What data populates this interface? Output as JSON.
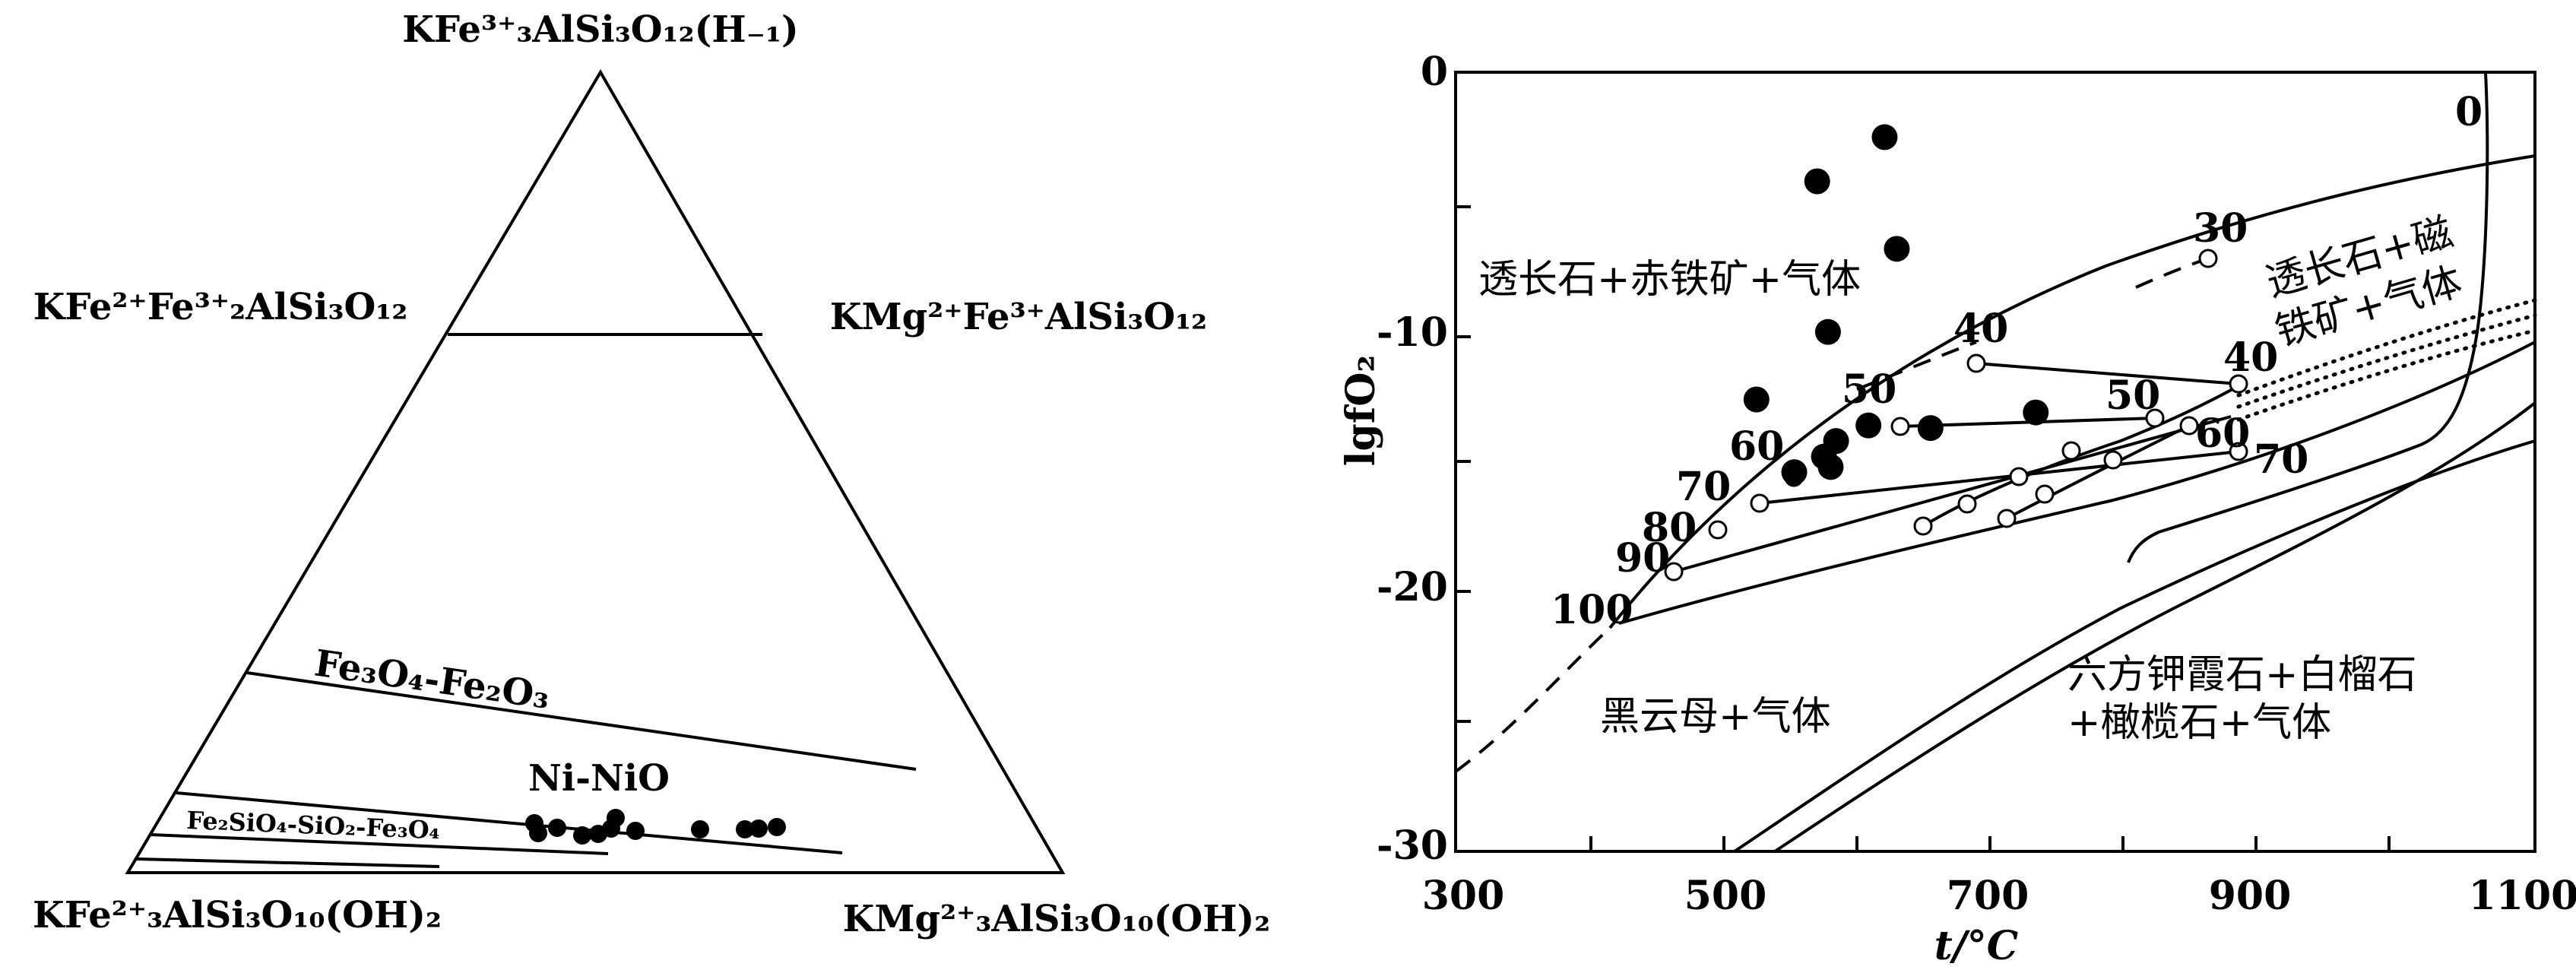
{
  "ternary": {
    "apex_top": "KFe³⁺₃AlSi₃O₁₂(H₋₁)",
    "left_side": "KFe²⁺Fe³⁺₂AlSi₃O₁₂",
    "right_side": "KMg²⁺Fe³⁺AlSi₃O₁₂",
    "bottom_left": "KFe²⁺₃AlSi₃O₁₀(OH)₂",
    "bottom_right": "KMg²⁺₃AlSi₃O₁₀(OH)₂",
    "buffer_mh": "Fe₃O₄-Fe₂O₃",
    "buffer_nno": "Ni-NiO",
    "buffer_fmq": "Fe₂SiO₄-SiO₂-Fe₃O₄"
  },
  "chart_data": {
    "type": "scatter",
    "xlabel": "t/°C",
    "ylabel": "lgfO₂",
    "xlim": [
      300,
      1100
    ],
    "ylim": [
      -30,
      0
    ],
    "x_ticks": [
      "300",
      "500",
      "700",
      "900",
      "1100"
    ],
    "y_ticks": [
      "0",
      "-10",
      "-20",
      "-30"
    ],
    "fields": {
      "upper_left": "透长石+赤铁矿+气体",
      "upper_right_1": "透长石+磁",
      "upper_right_2": "铁矿+气体",
      "lower_left": "黑云母+气体",
      "lower_right_1": "六方钾霞石+白榴石",
      "lower_right_2": "+橄榄石+气体"
    },
    "isopleth_labels": [
      "0",
      "30",
      "40",
      "50",
      "60",
      "70",
      "80",
      "90",
      "100",
      "40",
      "50",
      "60",
      "70"
    ],
    "samples": [
      {
        "t": 618,
        "lgfo2": -2.5
      },
      {
        "t": 568,
        "lgfo2": -4.2
      },
      {
        "t": 627,
        "lgfo2": -6.8
      },
      {
        "t": 576,
        "lgfo2": -10.0
      },
      {
        "t": 523,
        "lgfo2": -12.6
      },
      {
        "t": 730,
        "lgfo2": -13.1
      },
      {
        "t": 606,
        "lgfo2": -13.6
      },
      {
        "t": 652,
        "lgfo2": -13.7
      },
      {
        "t": 582,
        "lgfo2": -14.2
      },
      {
        "t": 573,
        "lgfo2": -14.8
      },
      {
        "t": 578,
        "lgfo2": -15.2
      },
      {
        "t": 551,
        "lgfo2": -15.4
      }
    ]
  }
}
